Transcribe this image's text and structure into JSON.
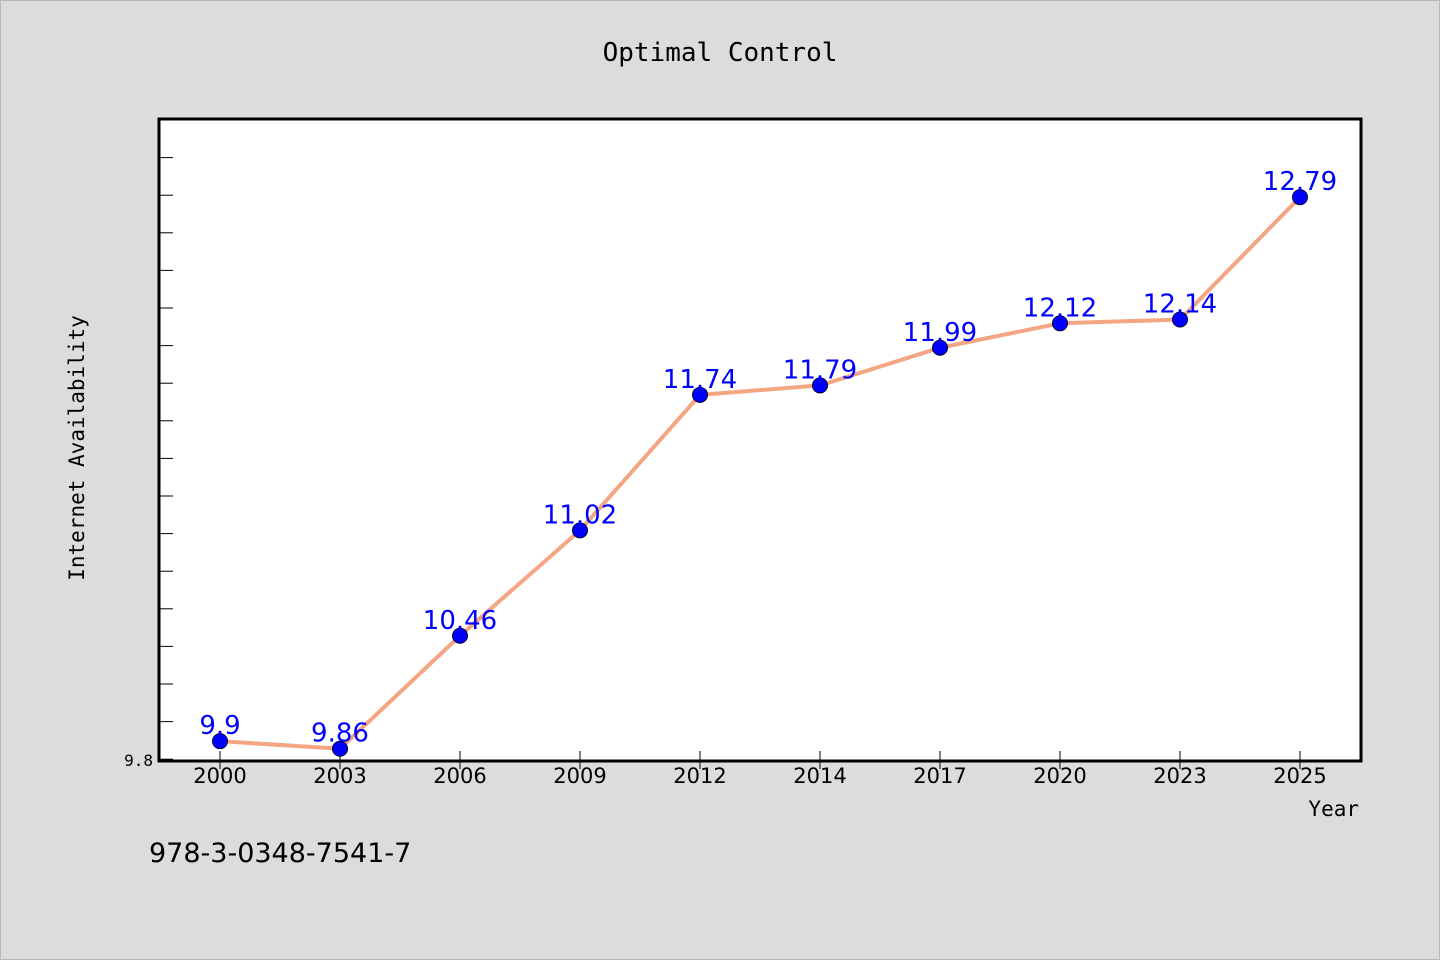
{
  "chart_data": {
    "type": "line",
    "title": "Optimal Control",
    "xlabel": "Year",
    "ylabel": "Internet Availability",
    "categories": [
      "2000",
      "2003",
      "2006",
      "2009",
      "2012",
      "2014",
      "2017",
      "2020",
      "2023",
      "2025"
    ],
    "series": [
      {
        "values": [
          9.9,
          9.86,
          10.46,
          11.02,
          11.74,
          11.79,
          11.99,
          12.12,
          12.14,
          12.79
        ],
        "labels": [
          "9.9",
          "9.86",
          "10.46",
          "11.02",
          "11.74",
          "11.79",
          "11.99",
          "12.12",
          "12.14",
          "12.79"
        ],
        "line_color": "#f4a582",
        "marker_color": "#0000ff"
      }
    ],
    "y_tick_labels": [
      "9.8"
    ],
    "ylim": [
      9.8,
      13.2
    ],
    "grid": false,
    "legend": "none"
  },
  "footer": {
    "isbn": "978-3-0348-7541-7"
  }
}
